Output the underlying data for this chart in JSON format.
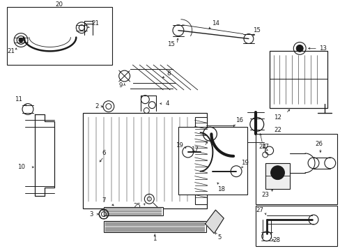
{
  "bg_color": "#ffffff",
  "line_color": "#1a1a1a",
  "fig_width": 4.89,
  "fig_height": 3.6,
  "dpi": 100,
  "lw": 0.7,
  "fontsize": 6.2
}
